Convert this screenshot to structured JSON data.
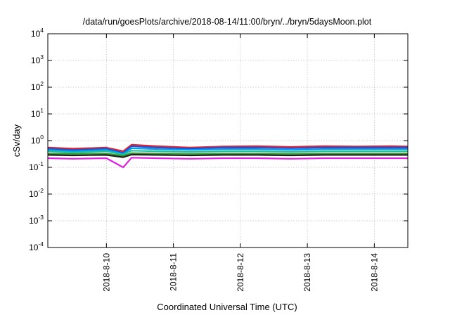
{
  "chart_data": {
    "type": "line",
    "title": "/data/run/goesPlots/archive/2018-08-14/11:00/bryn/../bryn/5daysMoon.plot",
    "xlabel": "Coordinated Universal Time (UTC)",
    "ylabel": "cSv/day",
    "yscale": "log",
    "ylim": [
      0.0001,
      10000
    ],
    "xlim": [
      "2018-08-09 03:00",
      "2018-08-14 12:00"
    ],
    "y_ticks": [
      {
        "base": "10",
        "exp": "-4",
        "value": 0.0001
      },
      {
        "base": "10",
        "exp": "-3",
        "value": 0.001
      },
      {
        "base": "10",
        "exp": "-2",
        "value": 0.01
      },
      {
        "base": "10",
        "exp": "-1",
        "value": 0.1
      },
      {
        "base": "10",
        "exp": "0",
        "value": 1
      },
      {
        "base": "10",
        "exp": "1",
        "value": 10
      },
      {
        "base": "10",
        "exp": "2",
        "value": 100
      },
      {
        "base": "10",
        "exp": "3",
        "value": 1000
      },
      {
        "base": "10",
        "exp": "4",
        "value": 10000
      }
    ],
    "x_ticks": [
      {
        "label": "2018-8-10",
        "value": "2018-08-10 00:00"
      },
      {
        "label": "2018-8-11",
        "value": "2018-08-11 00:00"
      },
      {
        "label": "2018-8-12",
        "value": "2018-08-12 00:00"
      },
      {
        "label": "2018-8-13",
        "value": "2018-08-13 00:00"
      },
      {
        "label": "2018-8-14",
        "value": "2018-08-14 00:00"
      }
    ],
    "grid": true,
    "legend": "none",
    "series": [
      {
        "color": "#e8202a",
        "x": [
          "2018-08-09 03:00",
          "2018-08-09 12:00",
          "2018-08-10 00:00",
          "2018-08-10 06:00",
          "2018-08-10 09:00",
          "2018-08-10 18:00",
          "2018-08-11 06:00",
          "2018-08-11 18:00",
          "2018-08-12 06:00",
          "2018-08-12 18:00",
          "2018-08-13 06:00",
          "2018-08-13 18:00",
          "2018-08-14 06:00",
          "2018-08-14 12:00"
        ],
        "values": [
          0.55,
          0.5,
          0.55,
          0.4,
          0.7,
          0.62,
          0.55,
          0.6,
          0.62,
          0.58,
          0.62,
          0.6,
          0.62,
          0.6
        ]
      },
      {
        "color": "#2050d8",
        "x": [
          "2018-08-09 03:00",
          "2018-08-09 12:00",
          "2018-08-10 00:00",
          "2018-08-10 06:00",
          "2018-08-10 09:00",
          "2018-08-10 18:00",
          "2018-08-11 06:00",
          "2018-08-11 18:00",
          "2018-08-12 06:00",
          "2018-08-12 18:00",
          "2018-08-13 06:00",
          "2018-08-13 18:00",
          "2018-08-14 06:00",
          "2018-08-14 12:00"
        ],
        "values": [
          0.5,
          0.45,
          0.5,
          0.35,
          0.62,
          0.55,
          0.5,
          0.55,
          0.55,
          0.52,
          0.55,
          0.55,
          0.55,
          0.55
        ]
      },
      {
        "color": "#00a0e8",
        "x": [
          "2018-08-09 03:00",
          "2018-08-09 12:00",
          "2018-08-10 00:00",
          "2018-08-10 06:00",
          "2018-08-10 09:00",
          "2018-08-10 18:00",
          "2018-08-11 06:00",
          "2018-08-11 18:00",
          "2018-08-12 06:00",
          "2018-08-12 18:00",
          "2018-08-13 06:00",
          "2018-08-13 18:00",
          "2018-08-14 06:00",
          "2018-08-14 12:00"
        ],
        "values": [
          0.45,
          0.4,
          0.45,
          0.32,
          0.52,
          0.48,
          0.45,
          0.48,
          0.48,
          0.45,
          0.48,
          0.48,
          0.48,
          0.48
        ]
      },
      {
        "color": "#20c0a0",
        "x": [
          "2018-08-09 03:00",
          "2018-08-09 12:00",
          "2018-08-10 00:00",
          "2018-08-10 06:00",
          "2018-08-10 09:00",
          "2018-08-10 18:00",
          "2018-08-11 06:00",
          "2018-08-11 18:00",
          "2018-08-12 06:00",
          "2018-08-12 18:00",
          "2018-08-13 06:00",
          "2018-08-13 18:00",
          "2018-08-14 06:00",
          "2018-08-14 12:00"
        ],
        "values": [
          0.4,
          0.36,
          0.4,
          0.3,
          0.42,
          0.4,
          0.38,
          0.4,
          0.4,
          0.38,
          0.4,
          0.4,
          0.4,
          0.4
        ]
      },
      {
        "color": "#30a030",
        "x": [
          "2018-08-09 03:00",
          "2018-08-09 12:00",
          "2018-08-10 00:00",
          "2018-08-10 06:00",
          "2018-08-10 09:00",
          "2018-08-10 18:00",
          "2018-08-11 06:00",
          "2018-08-11 18:00",
          "2018-08-12 06:00",
          "2018-08-12 18:00",
          "2018-08-13 06:00",
          "2018-08-13 18:00",
          "2018-08-14 06:00",
          "2018-08-14 12:00"
        ],
        "values": [
          0.33,
          0.32,
          0.33,
          0.27,
          0.34,
          0.33,
          0.32,
          0.33,
          0.33,
          0.32,
          0.33,
          0.33,
          0.33,
          0.33
        ]
      },
      {
        "color": "#222222",
        "x": [
          "2018-08-09 03:00",
          "2018-08-09 12:00",
          "2018-08-10 00:00",
          "2018-08-10 06:00",
          "2018-08-10 09:00",
          "2018-08-10 18:00",
          "2018-08-11 06:00",
          "2018-08-11 18:00",
          "2018-08-12 06:00",
          "2018-08-12 18:00",
          "2018-08-13 06:00",
          "2018-08-13 18:00",
          "2018-08-14 06:00",
          "2018-08-14 12:00"
        ],
        "values": [
          0.29,
          0.28,
          0.29,
          0.24,
          0.3,
          0.29,
          0.28,
          0.29,
          0.29,
          0.28,
          0.29,
          0.29,
          0.29,
          0.29
        ]
      },
      {
        "color": "#e020e0",
        "x": [
          "2018-08-09 03:00",
          "2018-08-09 12:00",
          "2018-08-10 00:00",
          "2018-08-10 06:00",
          "2018-08-10 09:00",
          "2018-08-10 18:00",
          "2018-08-11 06:00",
          "2018-08-11 18:00",
          "2018-08-12 06:00",
          "2018-08-12 18:00",
          "2018-08-13 06:00",
          "2018-08-13 18:00",
          "2018-08-14 06:00",
          "2018-08-14 12:00"
        ],
        "values": [
          0.22,
          0.21,
          0.22,
          0.1,
          0.23,
          0.22,
          0.21,
          0.22,
          0.22,
          0.21,
          0.22,
          0.22,
          0.22,
          0.22
        ]
      }
    ]
  }
}
